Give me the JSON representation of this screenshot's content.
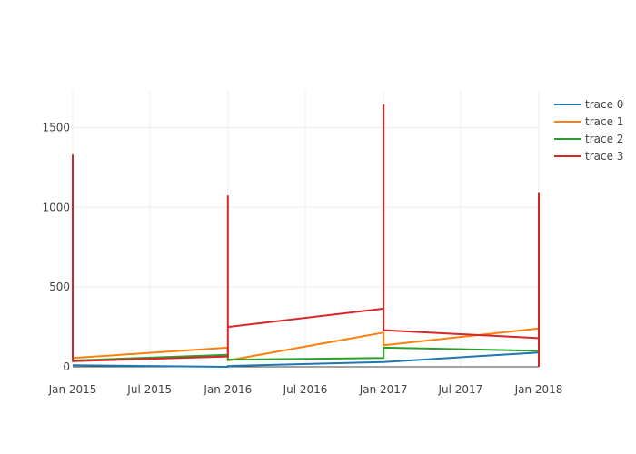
{
  "chart_data": {
    "type": "line",
    "title": "",
    "xlabel": "",
    "ylabel": "",
    "x_axis": {
      "type": "date",
      "range": [
        "2015-01-01",
        "2018-01-01"
      ],
      "ticks": [
        {
          "date": "2015-01-01",
          "label": "Jan 2015"
        },
        {
          "date": "2015-07-01",
          "label": "Jul 2015"
        },
        {
          "date": "2016-01-01",
          "label": "Jan 2016"
        },
        {
          "date": "2016-07-01",
          "label": "Jul 2016"
        },
        {
          "date": "2017-01-01",
          "label": "Jan 2017"
        },
        {
          "date": "2017-07-01",
          "label": "Jul 2017"
        },
        {
          "date": "2018-01-01",
          "label": "Jan 2018"
        }
      ]
    },
    "y_axis": {
      "range": [
        0,
        1730
      ],
      "ticks": [
        {
          "value": 0,
          "label": "0"
        },
        {
          "value": 500,
          "label": "500"
        },
        {
          "value": 1000,
          "label": "1000"
        },
        {
          "value": 1500,
          "label": "1500"
        }
      ]
    },
    "grid": true,
    "legend_position": "top-right",
    "series": [
      {
        "name": "trace 0",
        "color": "#1f77b4",
        "points": [
          {
            "x": "2015-01-01",
            "y": 10
          },
          {
            "x": "2016-01-01",
            "y": 0
          },
          {
            "x": "2016-01-01",
            "y": 5
          },
          {
            "x": "2017-01-01",
            "y": 30
          },
          {
            "x": "2017-01-01",
            "y": 30
          },
          {
            "x": "2018-01-01",
            "y": 90
          },
          {
            "x": "2018-01-01",
            "y": 0
          }
        ]
      },
      {
        "name": "trace 1",
        "color": "#ff7f0e",
        "points": [
          {
            "x": "2015-01-01",
            "y": 55
          },
          {
            "x": "2016-01-01",
            "y": 120
          },
          {
            "x": "2016-01-01",
            "y": 40
          },
          {
            "x": "2017-01-01",
            "y": 215
          },
          {
            "x": "2017-01-01",
            "y": 135
          },
          {
            "x": "2018-01-01",
            "y": 240
          },
          {
            "x": "2018-01-01",
            "y": 0
          }
        ]
      },
      {
        "name": "trace 2",
        "color": "#2ca02c",
        "points": [
          {
            "x": "2015-01-01",
            "y": 40
          },
          {
            "x": "2016-01-01",
            "y": 75
          },
          {
            "x": "2016-01-01",
            "y": 45
          },
          {
            "x": "2017-01-01",
            "y": 55
          },
          {
            "x": "2017-01-01",
            "y": 120
          },
          {
            "x": "2018-01-01",
            "y": 100
          },
          {
            "x": "2018-01-01",
            "y": 0
          }
        ]
      },
      {
        "name": "trace 3",
        "color": "#d62728",
        "points": [
          {
            "x": "2015-01-01",
            "y": 1330
          },
          {
            "x": "2015-01-01",
            "y": 35
          },
          {
            "x": "2016-01-01",
            "y": 65
          },
          {
            "x": "2016-01-01",
            "y": 1070
          },
          {
            "x": "2016-01-01",
            "y": 250
          },
          {
            "x": "2017-01-01",
            "y": 365
          },
          {
            "x": "2017-01-01",
            "y": 1640
          },
          {
            "x": "2017-01-01",
            "y": 230
          },
          {
            "x": "2018-01-01",
            "y": 180
          },
          {
            "x": "2018-01-01",
            "y": 1085
          },
          {
            "x": "2018-01-01",
            "y": 0
          }
        ]
      }
    ]
  }
}
